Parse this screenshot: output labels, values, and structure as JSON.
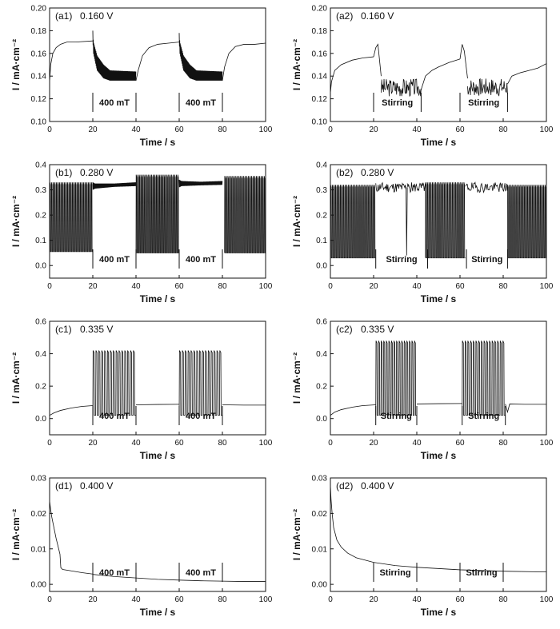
{
  "chart_data": [
    {
      "panel": "(a1)",
      "potential": "0.160 V",
      "type": "line",
      "xlabel": "Time / s",
      "ylabel": "I / mA·cm⁻²",
      "xlim": [
        0,
        100
      ],
      "ylim": [
        0.1,
        0.2
      ],
      "xticks": [
        "0",
        "20",
        "40",
        "60",
        "80",
        "100"
      ],
      "yticks": [
        "0.10",
        "0.12",
        "0.14",
        "0.16",
        "0.18",
        "0.20"
      ],
      "annotations": [
        {
          "text": "400 mT",
          "start": 20,
          "end": 40
        },
        {
          "text": "400 mT",
          "start": 60,
          "end": 80
        }
      ],
      "segments": [
        {
          "kind": "curve",
          "x": [
            0,
            0.5,
            1.5,
            3,
            5,
            8,
            12,
            20
          ],
          "y": [
            0.135,
            0.15,
            0.16,
            0.165,
            0.168,
            0.17,
            0.17,
            0.171
          ]
        },
        {
          "kind": "band",
          "x": [
            20,
            20.3,
            22,
            25,
            28,
            40
          ],
          "low": [
            0.172,
            0.16,
            0.145,
            0.138,
            0.136,
            0.136
          ],
          "high": [
            0.18,
            0.17,
            0.158,
            0.15,
            0.145,
            0.144
          ]
        },
        {
          "kind": "curve",
          "x": [
            40,
            41,
            43,
            46,
            50,
            55,
            60
          ],
          "y": [
            0.136,
            0.145,
            0.158,
            0.165,
            0.168,
            0.169,
            0.17
          ]
        },
        {
          "kind": "band",
          "x": [
            60,
            60.3,
            62,
            65,
            68,
            80
          ],
          "low": [
            0.17,
            0.16,
            0.145,
            0.138,
            0.136,
            0.136
          ],
          "high": [
            0.178,
            0.17,
            0.158,
            0.15,
            0.145,
            0.144
          ]
        },
        {
          "kind": "curve",
          "x": [
            80,
            81,
            83,
            86,
            90,
            95,
            100
          ],
          "y": [
            0.136,
            0.148,
            0.16,
            0.166,
            0.168,
            0.168,
            0.169
          ]
        }
      ]
    },
    {
      "panel": "(a2)",
      "potential": "0.160 V",
      "type": "line",
      "xlabel": "Time / s",
      "ylabel": "I / mA·cm⁻²",
      "xlim": [
        0,
        100
      ],
      "ylim": [
        0.1,
        0.2
      ],
      "xticks": [
        "0",
        "20",
        "40",
        "60",
        "80",
        "100"
      ],
      "yticks": [
        "0.10",
        "0.12",
        "0.14",
        "0.16",
        "0.18",
        "0.20"
      ],
      "annotations": [
        {
          "text": "Stirring",
          "start": 20,
          "end": 42
        },
        {
          "text": "Stirring",
          "start": 60,
          "end": 82
        }
      ],
      "segments": [
        {
          "kind": "curve",
          "x": [
            0,
            0.5,
            2,
            5,
            10,
            15,
            20
          ],
          "y": [
            0.125,
            0.135,
            0.145,
            0.15,
            0.154,
            0.156,
            0.157
          ]
        },
        {
          "kind": "curve",
          "x": [
            20,
            21,
            22,
            23.5
          ],
          "y": [
            0.157,
            0.165,
            0.168,
            0.14
          ]
        },
        {
          "kind": "noise",
          "x": [
            23.5,
            42
          ],
          "center": 0.13,
          "amp": 0.008,
          "n": 70,
          "seed": 3
        },
        {
          "kind": "curve",
          "x": [
            42,
            44,
            47,
            50,
            55,
            60
          ],
          "y": [
            0.128,
            0.14,
            0.145,
            0.148,
            0.152,
            0.155
          ]
        },
        {
          "kind": "curve",
          "x": [
            60,
            61,
            62,
            63.5
          ],
          "y": [
            0.155,
            0.168,
            0.162,
            0.138
          ]
        },
        {
          "kind": "noise",
          "x": [
            63.5,
            82
          ],
          "center": 0.13,
          "amp": 0.008,
          "n": 70,
          "seed": 7
        },
        {
          "kind": "curve",
          "x": [
            82,
            84,
            88,
            92,
            96,
            100
          ],
          "y": [
            0.133,
            0.14,
            0.143,
            0.145,
            0.147,
            0.151
          ]
        }
      ]
    },
    {
      "panel": "(b1)",
      "potential": "0.280 V",
      "type": "line",
      "xlabel": "Time / s",
      "ylabel": "I / mA·cm⁻²",
      "xlim": [
        0,
        100
      ],
      "ylim": [
        -0.05,
        0.4
      ],
      "xticks": [
        "0",
        "20",
        "40",
        "60",
        "80",
        "100"
      ],
      "yticks": [
        "0.0",
        "0.1",
        "0.2",
        "0.3",
        "0.4"
      ],
      "annotations": [
        {
          "text": "400 mT",
          "start": 20,
          "end": 40
        },
        {
          "text": "400 mT",
          "start": 60,
          "end": 80
        }
      ],
      "segments": [
        {
          "kind": "osc",
          "x": [
            0,
            20
          ],
          "low": 0.055,
          "high": 0.33,
          "n": 27
        },
        {
          "kind": "band",
          "x": [
            20,
            21,
            30,
            40
          ],
          "low": [
            0.3,
            0.305,
            0.312,
            0.315
          ],
          "high": [
            0.33,
            0.325,
            0.325,
            0.33
          ]
        },
        {
          "kind": "osc",
          "x": [
            40,
            60
          ],
          "low": 0.05,
          "high": 0.36,
          "n": 28
        },
        {
          "kind": "band",
          "x": [
            60,
            61,
            70,
            80
          ],
          "low": [
            0.31,
            0.315,
            0.318,
            0.32
          ],
          "high": [
            0.34,
            0.335,
            0.332,
            0.335
          ]
        },
        {
          "kind": "osc",
          "x": [
            81,
            100
          ],
          "low": 0.05,
          "high": 0.355,
          "n": 26
        }
      ]
    },
    {
      "panel": "(b2)",
      "potential": "0.280 V",
      "type": "line",
      "xlabel": "Time / s",
      "ylabel": "I / mA·cm⁻²",
      "xlim": [
        0,
        100
      ],
      "ylim": [
        -0.05,
        0.4
      ],
      "xticks": [
        "0",
        "20",
        "40",
        "60",
        "80",
        "100"
      ],
      "yticks": [
        "0.0",
        "0.1",
        "0.2",
        "0.3",
        "0.4"
      ],
      "annotations": [
        {
          "text": "Stirring",
          "start": 21,
          "end": 45
        },
        {
          "text": "Stirring",
          "start": 63,
          "end": 82
        }
      ],
      "segments": [
        {
          "kind": "osc",
          "x": [
            0,
            21
          ],
          "low": 0.03,
          "high": 0.32,
          "n": 28
        },
        {
          "kind": "noise",
          "x": [
            21,
            35
          ],
          "center": 0.31,
          "amp": 0.02,
          "n": 50,
          "seed": 11
        },
        {
          "kind": "curve",
          "x": [
            35,
            35.3,
            35.6
          ],
          "y": [
            0.31,
            0.04,
            0.31
          ]
        },
        {
          "kind": "noise",
          "x": [
            35.6,
            44
          ],
          "center": 0.31,
          "amp": 0.02,
          "n": 30,
          "seed": 5
        },
        {
          "kind": "osc",
          "x": [
            44,
            62.5
          ],
          "low": 0.03,
          "high": 0.33,
          "n": 24
        },
        {
          "kind": "noise",
          "x": [
            62.5,
            82
          ],
          "center": 0.31,
          "amp": 0.02,
          "n": 65,
          "seed": 19
        },
        {
          "kind": "osc",
          "x": [
            82,
            100
          ],
          "low": 0.03,
          "high": 0.32,
          "n": 24
        }
      ]
    },
    {
      "panel": "(c1)",
      "potential": "0.335 V",
      "type": "line",
      "xlabel": "Time / s",
      "ylabel": "I / mA·cm⁻²",
      "xlim": [
        0,
        100
      ],
      "ylim": [
        -0.1,
        0.6
      ],
      "xticks": [
        "0",
        "20",
        "40",
        "60",
        "80",
        "100"
      ],
      "yticks": [
        "0.0",
        "0.2",
        "0.4",
        "0.6"
      ],
      "annotations": [
        {
          "text": "400 mT",
          "start": 20,
          "end": 40
        },
        {
          "text": "400 mT",
          "start": 60,
          "end": 80
        }
      ],
      "segments": [
        {
          "kind": "curve",
          "x": [
            0,
            2,
            5,
            10,
            15,
            20
          ],
          "y": [
            0.02,
            0.035,
            0.05,
            0.065,
            0.075,
            0.08
          ]
        },
        {
          "kind": "osc",
          "x": [
            20,
            40
          ],
          "low": 0.02,
          "high": 0.42,
          "n": 15
        },
        {
          "kind": "curve",
          "x": [
            40,
            50,
            60
          ],
          "y": [
            0.085,
            0.087,
            0.088
          ]
        },
        {
          "kind": "osc",
          "x": [
            60,
            80
          ],
          "low": 0.02,
          "high": 0.42,
          "n": 15
        },
        {
          "kind": "curve",
          "x": [
            80,
            90,
            100
          ],
          "y": [
            0.085,
            0.083,
            0.083
          ]
        }
      ]
    },
    {
      "panel": "(c2)",
      "potential": "0.335 V",
      "type": "line",
      "xlabel": "Time / s",
      "ylabel": "I / mA·cm⁻²",
      "xlim": [
        0,
        100
      ],
      "ylim": [
        -0.1,
        0.6
      ],
      "xticks": [
        "0",
        "20",
        "40",
        "60",
        "80",
        "100"
      ],
      "yticks": [
        "0.0",
        "0.2",
        "0.4",
        "0.6"
      ],
      "annotations": [
        {
          "text": "Stirring",
          "start": 21,
          "end": 40
        },
        {
          "text": "Stirring",
          "start": 61,
          "end": 81
        }
      ],
      "segments": [
        {
          "kind": "curve",
          "x": [
            0,
            2,
            5,
            10,
            15,
            21
          ],
          "y": [
            0.02,
            0.04,
            0.055,
            0.07,
            0.08,
            0.085
          ]
        },
        {
          "kind": "osc",
          "x": [
            21,
            40
          ],
          "low": 0.02,
          "high": 0.48,
          "n": 16
        },
        {
          "kind": "curve",
          "x": [
            40,
            50,
            61
          ],
          "y": [
            0.09,
            0.092,
            0.093
          ]
        },
        {
          "kind": "osc",
          "x": [
            61,
            81
          ],
          "low": 0.02,
          "high": 0.48,
          "n": 16
        },
        {
          "kind": "curve",
          "x": [
            81,
            82,
            83,
            90,
            100
          ],
          "y": [
            0.09,
            0.04,
            0.09,
            0.088,
            0.088
          ]
        }
      ]
    },
    {
      "panel": "(d1)",
      "potential": "0.400 V",
      "type": "line",
      "xlabel": "Time / s",
      "ylabel": "I / mA·cm⁻²",
      "xlim": [
        0,
        100
      ],
      "ylim": [
        -0.002,
        0.03
      ],
      "xticks": [
        "0",
        "20",
        "40",
        "60",
        "80",
        "100"
      ],
      "yticks": [
        "0.00",
        "0.01",
        "0.02",
        "0.03"
      ],
      "annotations": [
        {
          "text": "400 mT",
          "start": 20,
          "end": 40
        },
        {
          "text": "400 mT",
          "start": 60,
          "end": 80
        }
      ],
      "segments": [
        {
          "kind": "curve",
          "x": [
            0,
            0.5,
            1,
            2,
            3,
            4,
            4.8,
            5.2,
            6,
            8,
            10,
            15,
            20
          ],
          "y": [
            0.0235,
            0.021,
            0.019,
            0.016,
            0.013,
            0.0105,
            0.0085,
            0.0047,
            0.0042,
            0.004,
            0.0038,
            0.0033,
            0.0029
          ]
        },
        {
          "kind": "curve",
          "x": [
            20,
            30,
            40,
            50,
            60,
            70,
            80,
            90,
            100
          ],
          "y": [
            0.0028,
            0.0022,
            0.0018,
            0.0014,
            0.0012,
            0.001,
            0.0009,
            0.0008,
            0.0008
          ]
        }
      ]
    },
    {
      "panel": "(d2)",
      "potential": "0.400 V",
      "type": "line",
      "xlabel": "Time / s",
      "ylabel": "I / mA·cm⁻²",
      "xlim": [
        0,
        100
      ],
      "ylim": [
        -0.002,
        0.03
      ],
      "xticks": [
        "0",
        "20",
        "40",
        "60",
        "80",
        "100"
      ],
      "yticks": [
        "0.00",
        "0.01",
        "0.02",
        "0.03"
      ],
      "annotations": [
        {
          "text": "Stirring",
          "start": 20,
          "end": 40
        },
        {
          "text": "Stirring",
          "start": 60,
          "end": 80
        }
      ],
      "segments": [
        {
          "kind": "curve",
          "x": [
            0,
            0.3,
            0.8,
            1.5,
            3,
            5,
            8,
            12,
            20,
            30,
            40,
            60,
            80,
            100
          ],
          "y": [
            0.028,
            0.024,
            0.02,
            0.016,
            0.0125,
            0.0105,
            0.0088,
            0.0075,
            0.0062,
            0.0053,
            0.0048,
            0.0041,
            0.0037,
            0.0035
          ]
        }
      ]
    }
  ]
}
